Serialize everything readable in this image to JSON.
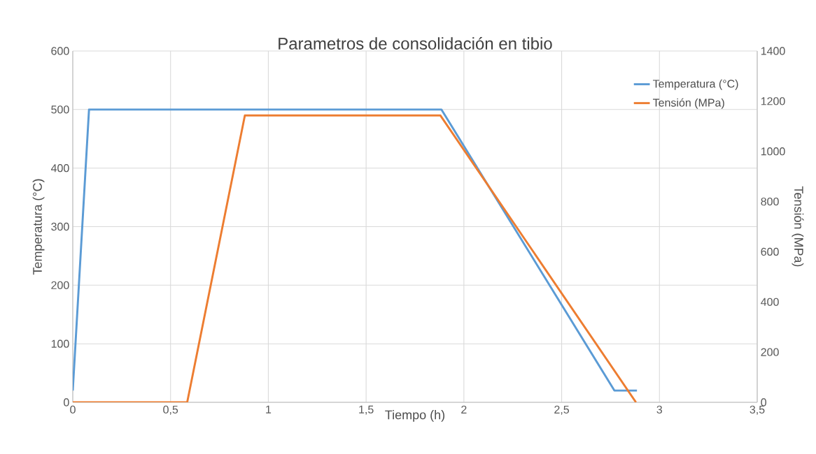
{
  "chart_data": {
    "type": "line",
    "title": "Parametros de consolidación en tibio",
    "xlabel": "Tiempo (h)",
    "ylabel": "Temperatura (°C)",
    "y2label": "Tensión (MPa)",
    "series": [
      {
        "name": "Temperatura (°C)",
        "color": "#5b9bd5",
        "x": [
          0,
          0.083,
          1.885,
          2.77,
          2.885
        ],
        "values": [
          20,
          500,
          500,
          20,
          20
        ]
      },
      {
        "name": "Tensión (MPa)",
        "color": "#ed7d31",
        "axis": "y2",
        "x": [
          0,
          0.585,
          0.88,
          1.88,
          2.88
        ],
        "values": [
          0,
          0,
          1143,
          1143,
          0
        ]
      }
    ],
    "xlim": [
      0,
      3.5
    ],
    "xticks": [
      0,
      {
        "value": 0.5,
        "label": "0,5"
      },
      1,
      {
        "value": 1.5,
        "label": "1,5"
      },
      2,
      {
        "value": 2.5,
        "label": "2,5"
      },
      3,
      {
        "value": 3.5,
        "label": "3,5"
      }
    ],
    "ylim": [
      0,
      600
    ],
    "yticks": [
      0,
      100,
      200,
      300,
      400,
      500,
      600
    ],
    "y2lim": [
      0,
      1400
    ],
    "y2ticks": [
      0,
      200,
      400,
      600,
      800,
      1000,
      1200,
      1400
    ],
    "grid": true,
    "legend": "top right",
    "marker": "none",
    "line_style": "solid"
  }
}
